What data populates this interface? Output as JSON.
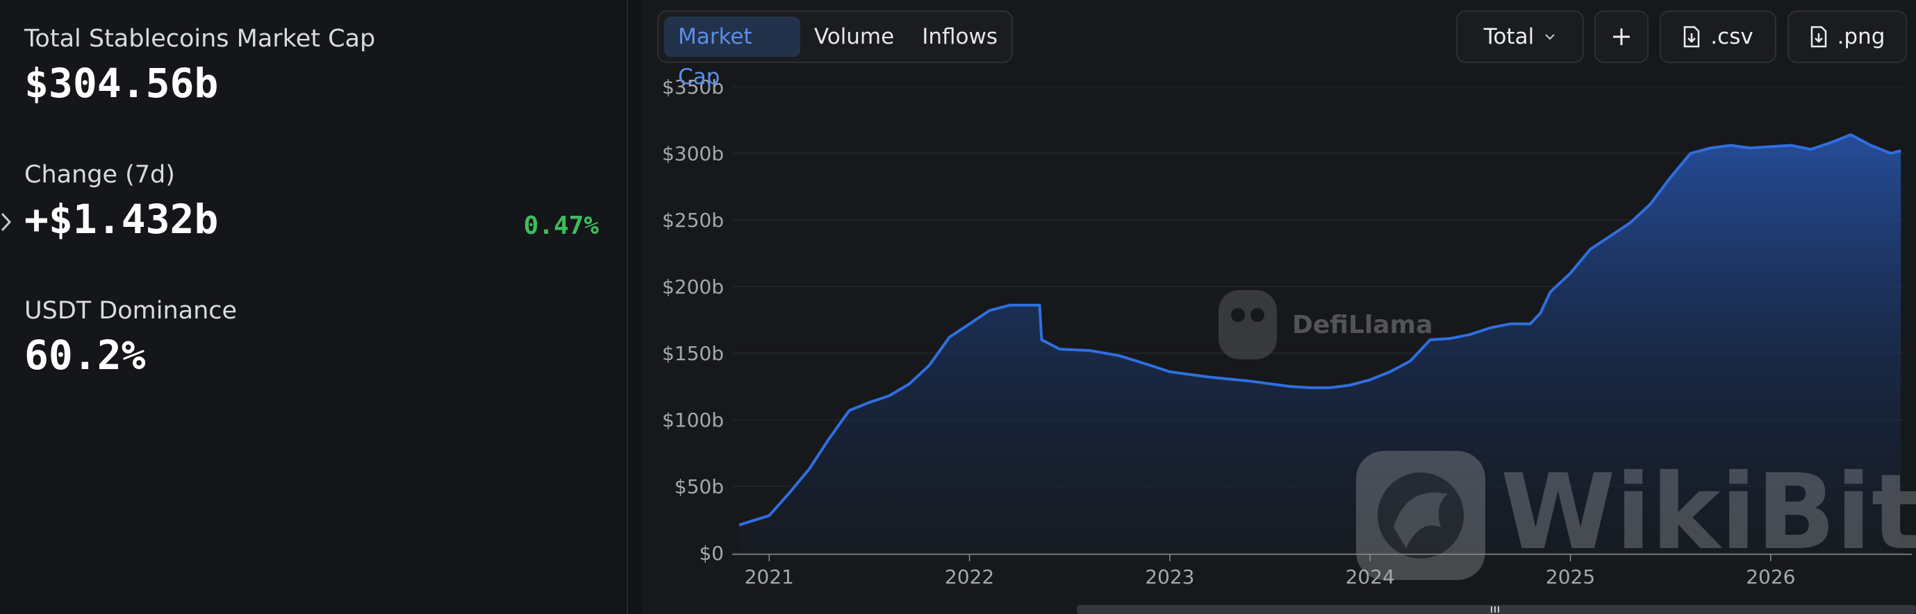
{
  "stats": {
    "market_cap_label": "Total Stablecoins Market Cap",
    "market_cap_value": "$304.56b",
    "change_label": "Change (7d)",
    "change_value": "+$1.432b",
    "change_percent": "0.47%",
    "dominance_label": "USDT Dominance",
    "dominance_value": "60.2%"
  },
  "tabs": [
    {
      "label": "Market Cap",
      "active": true
    },
    {
      "label": "Volume",
      "active": false
    },
    {
      "label": "Inflows",
      "active": false
    }
  ],
  "toolbar": {
    "total_label": "Total",
    "add_icon": "plus-icon",
    "csv_label": ".csv",
    "png_label": ".png"
  },
  "watermarks": {
    "defillama": "DefiLlama",
    "wikibit": "WikiBit"
  },
  "colors": {
    "accent": "#2f6fe0",
    "positive": "#3dbd5d",
    "active_tab_text": "#5b8fe6"
  },
  "chart_data": {
    "type": "area",
    "title": "",
    "xlabel": "",
    "ylabel": "",
    "y_ticks": [
      "$0",
      "$50b",
      "$100b",
      "$150b",
      "$200b",
      "$250b",
      "$300b",
      "$350b"
    ],
    "x_ticks": [
      "2021",
      "2022",
      "2023",
      "2024",
      "2025",
      "2026"
    ],
    "ylim": [
      0,
      350
    ],
    "grid": true,
    "series": [
      {
        "x": [
          2020.85,
          2021.0,
          2021.1,
          2021.2,
          2021.3,
          2021.4,
          2021.5,
          2021.6,
          2021.7,
          2021.8,
          2021.9,
          2022.0,
          2022.1,
          2022.2,
          2022.3,
          2022.35,
          2022.36,
          2022.45,
          2022.6,
          2022.75,
          2022.9,
          2023.0,
          2023.2,
          2023.4,
          2023.5,
          2023.6,
          2023.7,
          2023.8,
          2023.9,
          2024.0,
          2024.1,
          2024.2,
          2024.3,
          2024.4,
          2024.5,
          2024.6,
          2024.7,
          2024.8,
          2024.85,
          2024.9,
          2025.0,
          2025.1,
          2025.2,
          2025.3,
          2025.4,
          2025.5,
          2025.6,
          2025.7,
          2025.8,
          2025.9,
          2026.0,
          2026.1,
          2026.2,
          2026.3,
          2026.4,
          2026.5,
          2026.6,
          2026.65
        ],
        "values": [
          21,
          28,
          45,
          63,
          86,
          107,
          113,
          118,
          127,
          141,
          162,
          172,
          182,
          186,
          186,
          186,
          160,
          153,
          152,
          148,
          141,
          136,
          132,
          129,
          127,
          125,
          124,
          124,
          126,
          130,
          136,
          144,
          160,
          161,
          164,
          169,
          172,
          172,
          180,
          196,
          210,
          228,
          238,
          248,
          262,
          282,
          300,
          304,
          306,
          304,
          305,
          306,
          303,
          308,
          314,
          306,
          300,
          302
        ]
      }
    ]
  }
}
